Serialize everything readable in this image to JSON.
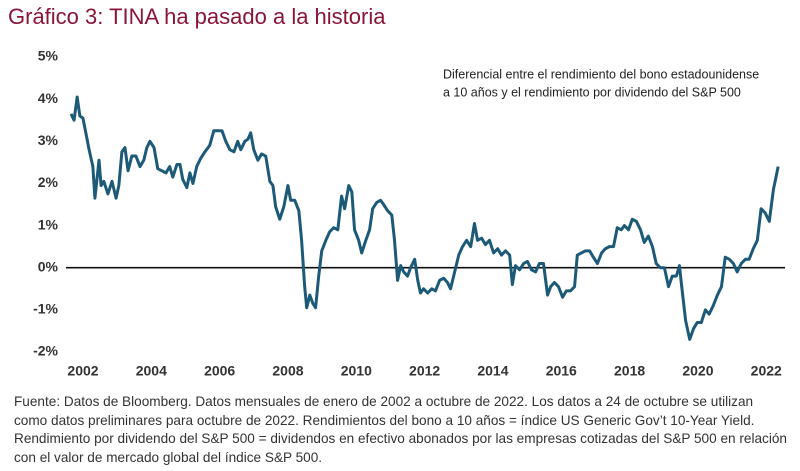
{
  "chart_data": {
    "type": "line",
    "title": "Gráfico 3: TINA ha pasado a la historia",
    "annotation": [
      "Diferencial entre el rendimiento del bono estadounidense",
      "a 10 años y el rendimiento por dividendo del S&P 500"
    ],
    "note": "Fuente: Datos de Bloomberg. Datos mensuales de enero de 2002 a octubre de 2022. Los datos a 24 de octubre se utilizan como datos preliminares para octubre de 2022. Rendimientos del bono a 10 años = índice US Generic Gov’t 10-Year Yield. Rendimiento por dividendo del S&P 500 = dividendos en efectivo abonados por las empresas cotizadas del S&P 500 en relación con el valor de mercado global del índice S&P 500.",
    "color": "#1d5a78",
    "xlim": [
      2002,
      2022.9
    ],
    "xticks": [
      2002,
      2004,
      2006,
      2008,
      2010,
      2012,
      2014,
      2016,
      2018,
      2020,
      2022
    ],
    "ylim": [
      -2,
      5
    ],
    "yticks": [
      {
        "value": -2,
        "label": "-2%"
      },
      {
        "value": -1,
        "label": "-1%"
      },
      {
        "value": 0,
        "label": "0%"
      },
      {
        "value": 1,
        "label": "1%"
      },
      {
        "value": 2,
        "label": "2%"
      },
      {
        "value": 3,
        "label": "3%"
      },
      {
        "value": 4,
        "label": "4%"
      },
      {
        "value": 5,
        "label": "5%"
      }
    ],
    "x": [
      2002.0,
      2002.09,
      2002.18,
      2002.26,
      2002.35,
      2002.53,
      2002.64,
      2002.7,
      2002.82,
      2002.88,
      2002.96,
      2003.08,
      2003.2,
      2003.32,
      2003.4,
      2003.49,
      2003.58,
      2003.67,
      2003.78,
      2003.9,
      2004.02,
      2004.13,
      2004.22,
      2004.31,
      2004.43,
      2004.54,
      2004.66,
      2004.78,
      2004.89,
      2004.98,
      2005.1,
      2005.19,
      2005.27,
      2005.39,
      2005.48,
      2005.57,
      2005.68,
      2005.8,
      2005.92,
      2006.06,
      2006.18,
      2006.3,
      2006.42,
      2006.53,
      2006.65,
      2006.77,
      2006.88,
      2006.97,
      2007.09,
      2007.18,
      2007.26,
      2007.35,
      2007.47,
      2007.58,
      2007.7,
      2007.82,
      2007.91,
      2007.99,
      2008.11,
      2008.23,
      2008.35,
      2008.43,
      2008.55,
      2008.67,
      2008.75,
      2008.84,
      2008.9,
      2008.99,
      2009.08,
      2009.16,
      2009.25,
      2009.34,
      2009.46,
      2009.57,
      2009.69,
      2009.81,
      2009.92,
      2010.01,
      2010.13,
      2010.22,
      2010.3,
      2010.42,
      2010.51,
      2010.63,
      2010.74,
      2010.83,
      2010.95,
      2011.06,
      2011.15,
      2011.27,
      2011.39,
      2011.47,
      2011.56,
      2011.65,
      2011.74,
      2011.85,
      2011.94,
      2012.06,
      2012.15,
      2012.23,
      2012.32,
      2012.44,
      2012.56,
      2012.67,
      2012.79,
      2012.91,
      2013.02,
      2013.11,
      2013.23,
      2013.35,
      2013.46,
      2013.58,
      2013.7,
      2013.81,
      2013.9,
      2014.02,
      2014.13,
      2014.25,
      2014.37,
      2014.49,
      2014.6,
      2014.72,
      2014.84,
      2014.92,
      2015.01,
      2015.13,
      2015.25,
      2015.36,
      2015.48,
      2015.6,
      2015.71,
      2015.83,
      2015.95,
      2016.04,
      2016.15,
      2016.27,
      2016.39,
      2016.5,
      2016.62,
      2016.74,
      2016.82,
      2016.94,
      2017.06,
      2017.18,
      2017.29,
      2017.41,
      2017.53,
      2017.64,
      2017.76,
      2017.88,
      2017.99,
      2018.11,
      2018.2,
      2018.32,
      2018.43,
      2018.55,
      2018.67,
      2018.78,
      2018.9,
      2019.02,
      2019.13,
      2019.25,
      2019.37,
      2019.49,
      2019.6,
      2019.72,
      2019.81,
      2019.87,
      2019.99,
      2020.11,
      2020.22,
      2020.33,
      2020.45,
      2020.57,
      2020.68,
      2020.8,
      2020.92,
      2021.04,
      2021.15,
      2021.27,
      2021.39,
      2021.5,
      2021.62,
      2021.74,
      2021.85,
      2021.97,
      2022.09,
      2022.2,
      2022.32,
      2022.44,
      2022.56,
      2022.7
    ],
    "values": [
      3.65,
      3.5,
      4.05,
      3.6,
      3.55,
      2.8,
      2.4,
      1.65,
      2.55,
      1.95,
      2.05,
      1.75,
      2.05,
      1.65,
      1.95,
      2.75,
      2.85,
      2.3,
      2.65,
      2.65,
      2.4,
      2.55,
      2.85,
      3.0,
      2.85,
      2.35,
      2.3,
      2.25,
      2.4,
      2.15,
      2.45,
      2.45,
      2.1,
      1.9,
      2.25,
      2.0,
      2.4,
      2.6,
      2.75,
      2.9,
      3.25,
      3.25,
      3.25,
      3.0,
      2.8,
      2.75,
      3.0,
      2.8,
      3.0,
      3.05,
      3.2,
      2.8,
      2.55,
      2.7,
      2.65,
      2.05,
      1.95,
      1.45,
      1.15,
      1.45,
      1.95,
      1.6,
      1.6,
      1.35,
      0.65,
      -0.45,
      -0.95,
      -0.65,
      -0.85,
      -0.95,
      -0.2,
      0.4,
      0.65,
      0.85,
      0.95,
      0.9,
      1.7,
      1.4,
      1.95,
      1.8,
      0.9,
      0.65,
      0.35,
      0.65,
      0.9,
      1.4,
      1.55,
      1.6,
      1.5,
      1.35,
      1.25,
      0.65,
      -0.3,
      0.05,
      -0.1,
      -0.2,
      0,
      0.2,
      -0.3,
      -0.6,
      -0.5,
      -0.6,
      -0.5,
      -0.55,
      -0.3,
      -0.25,
      -0.35,
      -0.5,
      -0.1,
      0.3,
      0.5,
      0.65,
      0.5,
      1.05,
      0.65,
      0.7,
      0.55,
      0.65,
      0.35,
      0.45,
      0.3,
      0.4,
      0.3,
      -0.4,
      0.05,
      -0.05,
      0.1,
      0.15,
      -0.05,
      -0.1,
      0.1,
      0.1,
      -0.65,
      -0.45,
      -0.35,
      -0.45,
      -0.7,
      -0.55,
      -0.55,
      -0.45,
      0.3,
      0.35,
      0.4,
      0.4,
      0.25,
      0.1,
      0.35,
      0.45,
      0.5,
      0.5,
      0.95,
      0.9,
      1.0,
      0.9,
      1.15,
      1.1,
      0.9,
      0.6,
      0.75,
      0.5,
      0.1,
      0.0,
      0.0,
      -0.45,
      -0.2,
      -0.2,
      0.05,
      -0.4,
      -1.25,
      -1.7,
      -1.45,
      -1.3,
      -1.3,
      -1.0,
      -1.1,
      -0.9,
      -0.65,
      -0.45,
      0.25,
      0.2,
      0.1,
      -0.1,
      0.1,
      0.2,
      0.2,
      0.45,
      0.65,
      1.4,
      1.3,
      1.1,
      1.85,
      2.4
    ]
  }
}
